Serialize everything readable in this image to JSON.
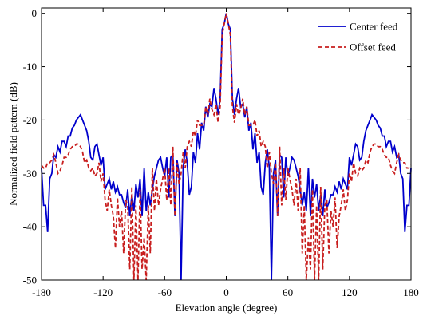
{
  "chart_data": {
    "type": "line",
    "title": "",
    "xlabel": "Elevation angle (degree)",
    "ylabel": "Normalized field pattern (dB)",
    "xlim": [
      -180,
      180
    ],
    "ylim": [
      -50,
      1
    ],
    "xticks": [
      -180,
      -120,
      -60,
      0,
      60,
      120,
      180
    ],
    "yticks": [
      0,
      -10,
      -20,
      -30,
      -40,
      -50
    ],
    "grid": false,
    "legend_position": "top-right",
    "series": [
      {
        "name": "Center feed",
        "color": "#0000cc",
        "style": "solid",
        "x": [
          -180,
          -178,
          -176,
          -174,
          -172,
          -170,
          -168,
          -166,
          -164,
          -162,
          -160,
          -158,
          -156,
          -154,
          -152,
          -150,
          -148,
          -146,
          -144,
          -142,
          -140,
          -138,
          -136,
          -134,
          -132,
          -130,
          -128,
          -126,
          -124,
          -122,
          -120,
          -118,
          -116,
          -114,
          -112,
          -110,
          -108,
          -106,
          -104,
          -102,
          -100,
          -98,
          -96,
          -94,
          -92,
          -90,
          -88,
          -86,
          -84,
          -82,
          -80,
          -78,
          -76,
          -74,
          -72,
          -70,
          -68,
          -66,
          -64,
          -62,
          -60,
          -58,
          -56,
          -54,
          -52,
          -50,
          -48,
          -46,
          -44,
          -42,
          -40,
          -38,
          -36,
          -34,
          -32,
          -30,
          -28,
          -26,
          -24,
          -22,
          -20,
          -18,
          -16,
          -14,
          -12,
          -10,
          -8,
          -6,
          -4,
          -2,
          0,
          2,
          4,
          6,
          8,
          10,
          12,
          14,
          16,
          18,
          20,
          22,
          24,
          26,
          28,
          30,
          32,
          34,
          36,
          38,
          40,
          42,
          44,
          46,
          48,
          50,
          52,
          54,
          56,
          58,
          60,
          62,
          64,
          66,
          68,
          70,
          72,
          74,
          76,
          78,
          80,
          82,
          84,
          86,
          88,
          90,
          92,
          94,
          96,
          98,
          100,
          102,
          104,
          106,
          108,
          110,
          112,
          114,
          116,
          118,
          120,
          122,
          124,
          126,
          128,
          130,
          132,
          134,
          136,
          138,
          140,
          142,
          144,
          146,
          148,
          150,
          152,
          154,
          156,
          158,
          160,
          162,
          164,
          166,
          168,
          170,
          172,
          174,
          176,
          178,
          180
        ],
        "y": [
          -29,
          -36,
          -36,
          -41,
          -31,
          -30,
          -26.5,
          -27,
          -25,
          -26,
          -24,
          -24,
          -25,
          -23,
          -23,
          -21.5,
          -21,
          -20,
          -19.5,
          -19,
          -20,
          -21,
          -22,
          -24,
          -27,
          -27.5,
          -25,
          -24.5,
          -26.5,
          -28.5,
          -27,
          -33,
          -32,
          -31,
          -33,
          -31.5,
          -33.5,
          -32.5,
          -34,
          -34,
          -35.5,
          -36.5,
          -33,
          -38,
          -34,
          -37,
          -32,
          -34.5,
          -31,
          -38,
          -29,
          -37,
          -33.5,
          -36,
          -33,
          -30.5,
          -29,
          -27.5,
          -27,
          -29,
          -30.5,
          -27,
          -34.5,
          -27,
          -26.5,
          -38,
          -27.5,
          -30,
          -50,
          -29,
          -25.5,
          -28,
          -34,
          -32.5,
          -26,
          -28,
          -22.5,
          -25.5,
          -20.5,
          -22,
          -17.5,
          -19.5,
          -17,
          -17.5,
          -14,
          -16,
          -19,
          -16,
          -3,
          -2,
          0,
          -2,
          -3,
          -16,
          -19,
          -16,
          -14,
          -17.5,
          -17,
          -19.5,
          -17.5,
          -22,
          -20.5,
          -25.5,
          -22.5,
          -28,
          -26,
          -32.5,
          -34,
          -28,
          -25.5,
          -29,
          -50,
          -30,
          -27.5,
          -38,
          -26.5,
          -27,
          -34.5,
          -27,
          -30.5,
          -29,
          -27,
          -27.5,
          -29,
          -30.5,
          -33,
          -36,
          -33.5,
          -37,
          -29,
          -38,
          -31,
          -34.5,
          -32,
          -37,
          -34,
          -38,
          -33,
          -36.5,
          -35.5,
          -34,
          -34,
          -32.5,
          -33.5,
          -31.5,
          -33,
          -31,
          -32,
          -33,
          -27,
          -28.5,
          -26.5,
          -24.5,
          -25,
          -27.5,
          -27,
          -24,
          -22,
          -21,
          -20,
          -19,
          -19.5,
          -20,
          -21,
          -21.5,
          -23,
          -23,
          -25,
          -24,
          -24,
          -26,
          -25,
          -27,
          -26.5,
          -30,
          -31,
          -41,
          -36,
          -36,
          -29
        ]
      },
      {
        "name": "Offset feed",
        "color": "#c81e1e",
        "style": "dashed",
        "x": [
          -180,
          -178,
          -176,
          -174,
          -172,
          -170,
          -168,
          -166,
          -164,
          -162,
          -160,
          -158,
          -156,
          -154,
          -152,
          -150,
          -148,
          -146,
          -144,
          -142,
          -140,
          -138,
          -136,
          -134,
          -132,
          -130,
          -128,
          -126,
          -124,
          -122,
          -120,
          -118,
          -116,
          -114,
          -112,
          -110,
          -108,
          -106,
          -104,
          -102,
          -100,
          -98,
          -96,
          -94,
          -92,
          -90,
          -88,
          -86,
          -84,
          -82,
          -80,
          -78,
          -76,
          -74,
          -72,
          -70,
          -68,
          -66,
          -64,
          -62,
          -60,
          -58,
          -56,
          -54,
          -52,
          -50,
          -48,
          -46,
          -44,
          -42,
          -40,
          -38,
          -36,
          -34,
          -32,
          -30,
          -28,
          -26,
          -24,
          -22,
          -20,
          -18,
          -16,
          -14,
          -12,
          -10,
          -8,
          -6,
          -4,
          -2,
          0,
          2,
          4,
          6,
          8,
          10,
          12,
          14,
          16,
          18,
          20,
          22,
          24,
          26,
          28,
          30,
          32,
          34,
          36,
          38,
          40,
          42,
          44,
          46,
          48,
          50,
          52,
          54,
          56,
          58,
          60,
          62,
          64,
          66,
          68,
          70,
          72,
          74,
          76,
          78,
          80,
          82,
          84,
          86,
          88,
          90,
          92,
          94,
          96,
          98,
          100,
          102,
          104,
          106,
          108,
          110,
          112,
          114,
          116,
          118,
          120,
          122,
          124,
          126,
          128,
          130,
          132,
          134,
          136,
          138,
          140,
          142,
          144,
          146,
          148,
          150,
          152,
          154,
          156,
          158,
          160,
          162,
          164,
          166,
          168,
          170,
          172,
          174,
          176,
          178,
          180
        ],
        "y": [
          -28.5,
          -29,
          -29,
          -28,
          -28,
          -27.5,
          -26.5,
          -28,
          -30,
          -29.5,
          -28.5,
          -27,
          -27,
          -26.5,
          -25.5,
          -25,
          -25,
          -24.5,
          -24.5,
          -25,
          -26,
          -28,
          -27.5,
          -29,
          -29.5,
          -29,
          -30.5,
          -30,
          -28,
          -31.5,
          -30,
          -35,
          -37,
          -33,
          -36,
          -38,
          -44,
          -34.5,
          -40,
          -37,
          -45,
          -35,
          -36,
          -48,
          -32.5,
          -50,
          -36,
          -50,
          -33,
          -48,
          -42,
          -50,
          -36,
          -45,
          -29,
          -37,
          -31,
          -36,
          -33,
          -31,
          -29,
          -35,
          -29,
          -36,
          -25,
          -38,
          -28,
          -32,
          -30,
          -26,
          -29,
          -25,
          -24,
          -25,
          -22,
          -23,
          -20,
          -21,
          -21,
          -21,
          -17.5,
          -19,
          -16,
          -18,
          -19,
          -17,
          -20.5,
          -17.5,
          -4,
          -2,
          0,
          -2,
          -4,
          -17.5,
          -20.5,
          -17,
          -19,
          -18,
          -16,
          -19,
          -17.5,
          -21,
          -21,
          -21,
          -20,
          -23,
          -22,
          -25,
          -24,
          -25,
          -29,
          -26,
          -30,
          -32,
          -28,
          -38,
          -25,
          -36,
          -29,
          -35,
          -29,
          -31,
          -33,
          -36,
          -31,
          -37,
          -29,
          -45,
          -36,
          -50,
          -42,
          -48,
          -33,
          -50,
          -36,
          -50,
          -32.5,
          -48,
          -36,
          -35,
          -45,
          -37,
          -40,
          -34.5,
          -44,
          -38,
          -36,
          -33,
          -37,
          -35,
          -30,
          -31.5,
          -28,
          -30,
          -30.5,
          -29,
          -29.5,
          -29,
          -27.5,
          -28,
          -26,
          -25,
          -24.5,
          -24.5,
          -25,
          -25,
          -25.5,
          -26.5,
          -27,
          -27,
          -28.5,
          -29.5,
          -30,
          -28,
          -26.5,
          -27.5,
          -28,
          -28,
          -29,
          -29,
          -28.5
        ]
      }
    ]
  }
}
